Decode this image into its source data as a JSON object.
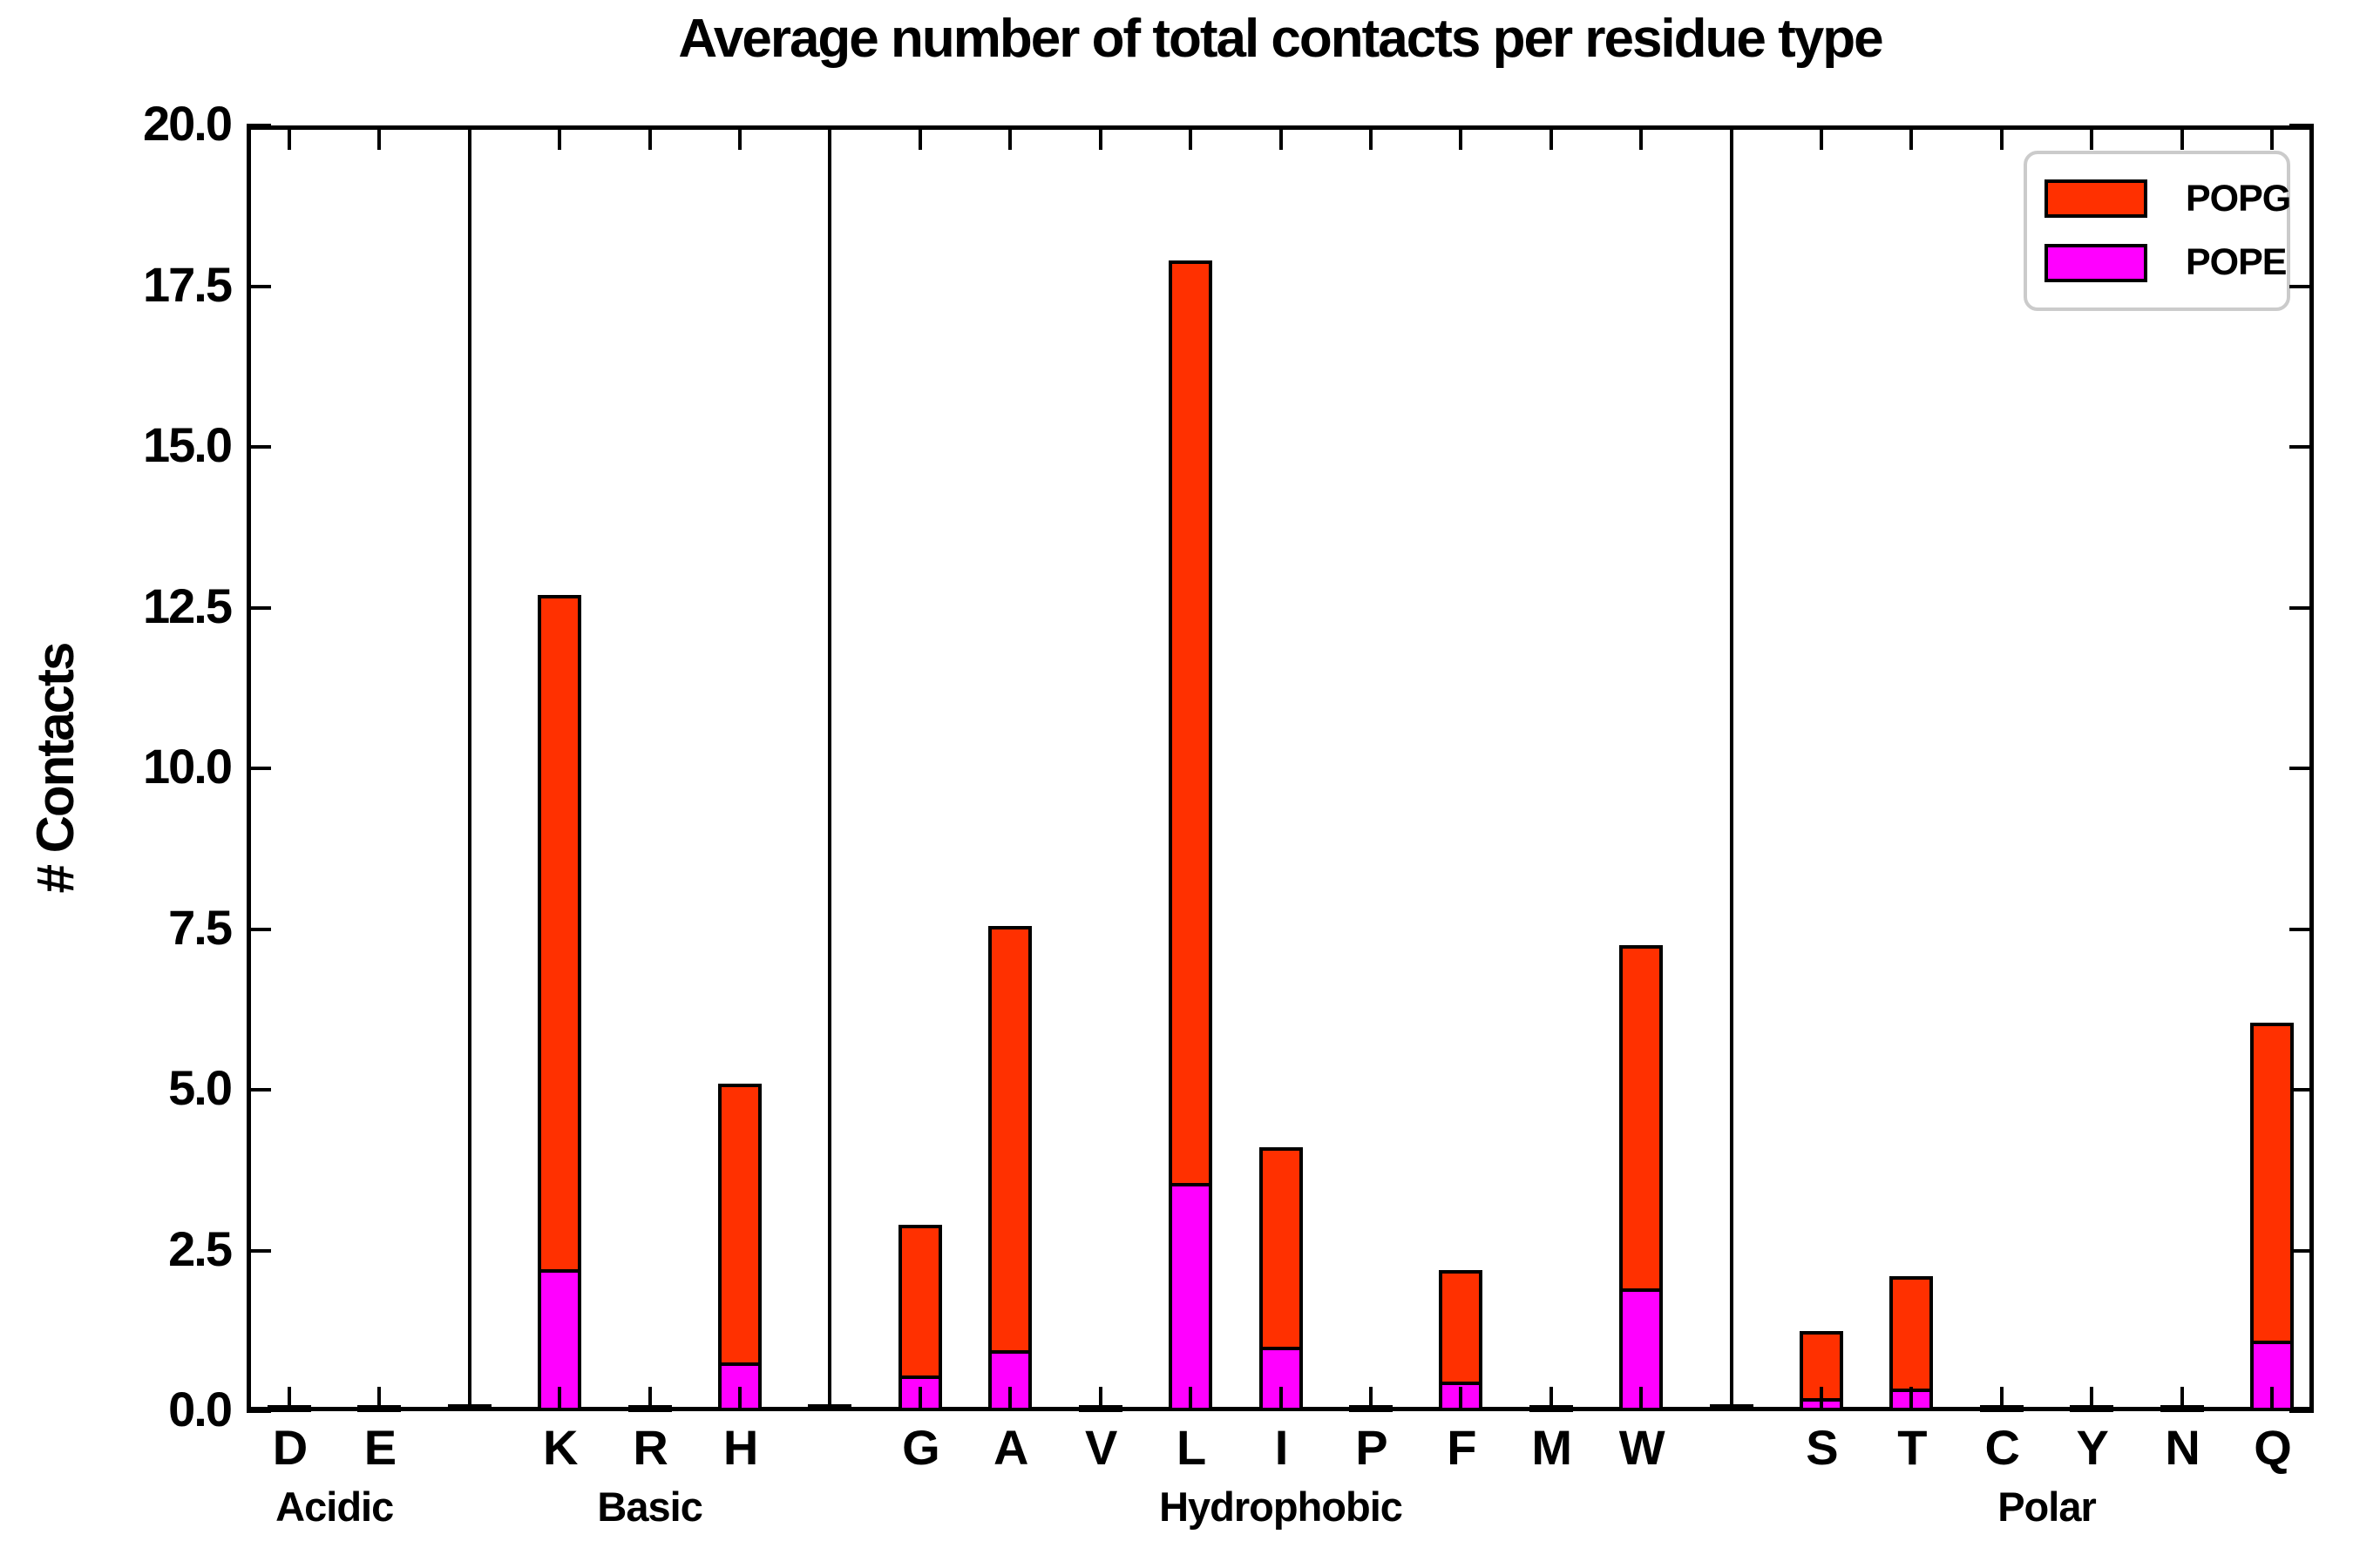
{
  "title": "Average number of total contacts per residue type",
  "ylabel": "# Contacts",
  "legend": {
    "items": [
      {
        "label": "POPG",
        "color": "#ff3000"
      },
      {
        "label": "POPE",
        "color": "#ff00ff"
      }
    ]
  },
  "colors": {
    "popg": "#ff3000",
    "pope": "#ff00ff",
    "axis": "#000000",
    "legend_border": "#cbcbcb",
    "background": "#ffffff"
  },
  "chart_data": {
    "type": "bar",
    "stacked": true,
    "title": "Average number of total contacts per residue type",
    "xlabel": "",
    "ylabel": "# Contacts",
    "ylim": [
      0,
      20
    ],
    "grid": false,
    "legend_position": "upper right",
    "yticks": [
      0,
      2.5,
      5,
      7.5,
      10,
      12.5,
      15,
      17.5,
      20
    ],
    "ytick_labels": [
      "0.0",
      "2.5",
      "5.0",
      "7.5",
      "10.0",
      "12.5",
      "15.0",
      "17.5",
      "20.0"
    ],
    "categories": [
      "D",
      "E",
      "K",
      "R",
      "H",
      "G",
      "A",
      "V",
      "L",
      "I",
      "P",
      "F",
      "M",
      "W",
      "S",
      "T",
      "C",
      "Y",
      "N",
      "Q"
    ],
    "groups": [
      {
        "label": "Acidic",
        "residues": [
          "D",
          "E"
        ]
      },
      {
        "label": "Basic",
        "residues": [
          "K",
          "R",
          "H"
        ]
      },
      {
        "label": "Hydrophobic",
        "residues": [
          "G",
          "A",
          "V",
          "L",
          "I",
          "P",
          "F",
          "M",
          "W"
        ]
      },
      {
        "label": "Polar",
        "residues": [
          "S",
          "T",
          "C",
          "Y",
          "N",
          "Q"
        ]
      }
    ],
    "series": [
      {
        "name": "POPG",
        "color": "#ff3000",
        "values": [
          0.03,
          0.03,
          10.55,
          0.04,
          4.4,
          2.4,
          6.65,
          0.03,
          14.4,
          3.15,
          0.03,
          1.8,
          0.03,
          5.4,
          1.1,
          1.8,
          0.03,
          0.03,
          0.03,
          5.0
        ]
      },
      {
        "name": "POPE",
        "color": "#ff00ff",
        "values": [
          0.02,
          0.02,
          2.15,
          0.02,
          0.7,
          0.5,
          0.9,
          0.02,
          3.5,
          0.95,
          0.02,
          0.4,
          0.01,
          1.85,
          0.15,
          0.3,
          0.01,
          0.02,
          0.01,
          1.05
        ]
      }
    ],
    "stacked_totals": [
      0.05,
      0.05,
      12.7,
      0.06,
      5.1,
      2.9,
      7.55,
      0.05,
      17.9,
      4.1,
      0.05,
      2.2,
      0.04,
      7.25,
      1.25,
      2.1,
      0.04,
      0.05,
      0.04,
      6.05
    ],
    "group_separators": {
      "after_residues": [
        "E",
        "H",
        "W"
      ],
      "full_height_line": true,
      "base_stub": true
    }
  }
}
